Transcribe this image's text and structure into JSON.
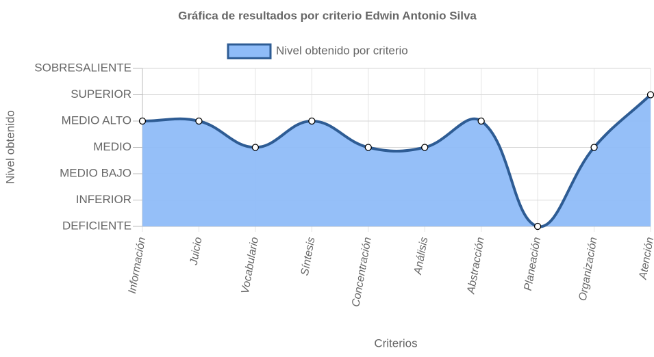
{
  "chart_data": {
    "type": "area",
    "title": "Gráfica de resultados por criterio Edwin Antonio Silva",
    "x_label": "Criterios",
    "y_label": "Nivel obtenido",
    "categories": [
      "Información",
      "Juicio",
      "Vocabulario",
      "Síntesis",
      "Concentración",
      "Análisis",
      "Abstracción",
      "Planeación",
      "Organización",
      "Atención"
    ],
    "series": [
      {
        "name": "Nivel obtenido por criterio",
        "color": "#2e5c94",
        "fill": "#8fbcf8",
        "values": [
          4,
          4,
          3,
          4,
          3,
          3,
          4,
          0,
          3,
          5
        ]
      }
    ],
    "ylim": [
      0,
      6
    ],
    "yticks": [
      {
        "value": 0,
        "label": "DEFICIENTE"
      },
      {
        "value": 1,
        "label": "INFERIOR"
      },
      {
        "value": 2,
        "label": "MEDIO BAJO"
      },
      {
        "value": 3,
        "label": "MEDIO"
      },
      {
        "value": 4,
        "label": "MEDIO ALTO"
      },
      {
        "value": 5,
        "label": "SUPERIOR"
      },
      {
        "value": 6,
        "label": "SOBRESALIENTE"
      }
    ],
    "grid": true,
    "legend": "top"
  }
}
